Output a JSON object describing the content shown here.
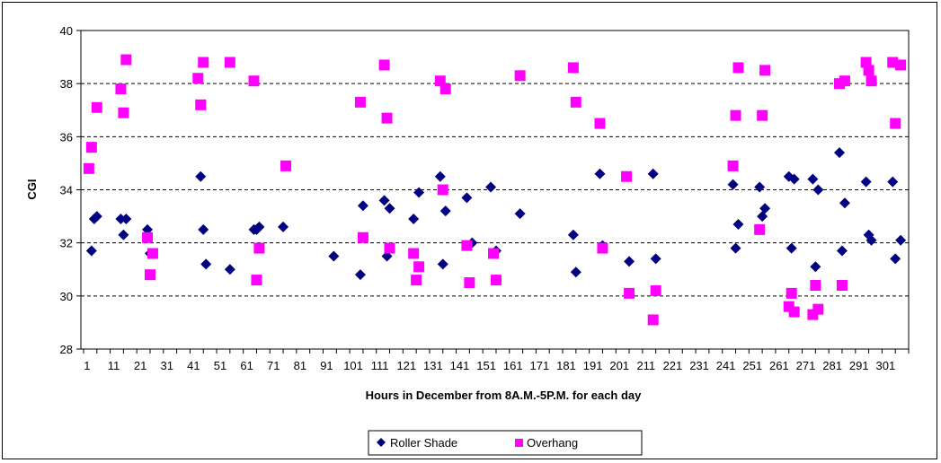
{
  "chart_data": {
    "type": "scatter",
    "title": "",
    "xlabel": "Hours in December from 8A.M.-5P.M. for each day",
    "ylabel": "CGI",
    "xlim": [
      1,
      310
    ],
    "ylim": [
      28,
      40
    ],
    "y_ticks": [
      28,
      30,
      32,
      34,
      36,
      38,
      40
    ],
    "x_ticks": [
      1,
      11,
      21,
      31,
      41,
      51,
      61,
      71,
      81,
      91,
      101,
      111,
      121,
      131,
      141,
      151,
      161,
      171,
      181,
      191,
      201,
      211,
      221,
      231,
      241,
      251,
      261,
      271,
      281,
      291,
      301
    ],
    "grid": "horizontal dashed",
    "legend": "bottom",
    "series": [
      {
        "name": "Roller Shade",
        "marker": "diamond",
        "color": "#000080",
        "points": [
          [
            3,
            31.7
          ],
          [
            4,
            32.9
          ],
          [
            5,
            33.0
          ],
          [
            14,
            32.9
          ],
          [
            15,
            32.3
          ],
          [
            16,
            32.9
          ],
          [
            24,
            32.5
          ],
          [
            25,
            31.6
          ],
          [
            44,
            34.5
          ],
          [
            45,
            32.5
          ],
          [
            46,
            31.2
          ],
          [
            55,
            31.0
          ],
          [
            64,
            32.5
          ],
          [
            65,
            32.5
          ],
          [
            66,
            32.6
          ],
          [
            75,
            32.6
          ],
          [
            94,
            31.5
          ],
          [
            104,
            30.8
          ],
          [
            105,
            33.4
          ],
          [
            113,
            33.6
          ],
          [
            114,
            31.5
          ],
          [
            115,
            33.3
          ],
          [
            124,
            32.9
          ],
          [
            126,
            33.9
          ],
          [
            134,
            34.5
          ],
          [
            135,
            31.2
          ],
          [
            136,
            33.2
          ],
          [
            144,
            33.7
          ],
          [
            146,
            32.0
          ],
          [
            153,
            34.1
          ],
          [
            155,
            31.7
          ],
          [
            164,
            33.1
          ],
          [
            184,
            32.3
          ],
          [
            185,
            30.9
          ],
          [
            194,
            34.6
          ],
          [
            195,
            31.9
          ],
          [
            204,
            34.5
          ],
          [
            205,
            31.3
          ],
          [
            214,
            34.6
          ],
          [
            215,
            31.4
          ],
          [
            244,
            34.2
          ],
          [
            245,
            31.8
          ],
          [
            246,
            32.7
          ],
          [
            254,
            34.1
          ],
          [
            255,
            33.0
          ],
          [
            256,
            33.3
          ],
          [
            265,
            34.5
          ],
          [
            266,
            31.8
          ],
          [
            267,
            34.4
          ],
          [
            274,
            34.4
          ],
          [
            275,
            31.1
          ],
          [
            276,
            34.0
          ],
          [
            284,
            35.4
          ],
          [
            285,
            31.7
          ],
          [
            286,
            33.5
          ],
          [
            294,
            34.3
          ],
          [
            295,
            32.3
          ],
          [
            296,
            32.1
          ],
          [
            304,
            34.3
          ],
          [
            305,
            31.4
          ],
          [
            307,
            32.1
          ]
        ]
      },
      {
        "name": "Overhang",
        "marker": "square",
        "color": "#FF00FF",
        "points": [
          [
            2,
            34.8
          ],
          [
            3,
            35.6
          ],
          [
            5,
            37.1
          ],
          [
            14,
            37.8
          ],
          [
            15,
            36.9
          ],
          [
            16,
            38.9
          ],
          [
            24,
            32.2
          ],
          [
            25,
            30.8
          ],
          [
            26,
            31.6
          ],
          [
            43,
            38.2
          ],
          [
            44,
            37.2
          ],
          [
            45,
            38.8
          ],
          [
            55,
            38.8
          ],
          [
            64,
            38.1
          ],
          [
            65,
            30.6
          ],
          [
            66,
            31.8
          ],
          [
            76,
            34.9
          ],
          [
            104,
            37.3
          ],
          [
            105,
            32.2
          ],
          [
            113,
            38.7
          ],
          [
            114,
            36.7
          ],
          [
            115,
            31.8
          ],
          [
            124,
            31.6
          ],
          [
            125,
            30.6
          ],
          [
            126,
            31.1
          ],
          [
            134,
            38.1
          ],
          [
            135,
            34.0
          ],
          [
            136,
            37.8
          ],
          [
            144,
            31.9
          ],
          [
            145,
            30.5
          ],
          [
            154,
            31.6
          ],
          [
            155,
            30.6
          ],
          [
            164,
            38.3
          ],
          [
            184,
            38.6
          ],
          [
            185,
            37.3
          ],
          [
            194,
            36.5
          ],
          [
            195,
            31.8
          ],
          [
            204,
            34.5
          ],
          [
            205,
            30.1
          ],
          [
            214,
            29.1
          ],
          [
            215,
            30.2
          ],
          [
            244,
            34.9
          ],
          [
            245,
            36.8
          ],
          [
            246,
            38.6
          ],
          [
            254,
            32.5
          ],
          [
            255,
            36.8
          ],
          [
            256,
            38.5
          ],
          [
            265,
            29.6
          ],
          [
            266,
            30.1
          ],
          [
            267,
            29.4
          ],
          [
            274,
            29.3
          ],
          [
            275,
            30.4
          ],
          [
            276,
            29.5
          ],
          [
            284,
            38.0
          ],
          [
            285,
            30.4
          ],
          [
            286,
            38.1
          ],
          [
            294,
            38.8
          ],
          [
            295,
            38.5
          ],
          [
            296,
            38.1
          ],
          [
            304,
            38.8
          ],
          [
            305,
            36.5
          ],
          [
            307,
            38.7
          ]
        ]
      }
    ]
  }
}
